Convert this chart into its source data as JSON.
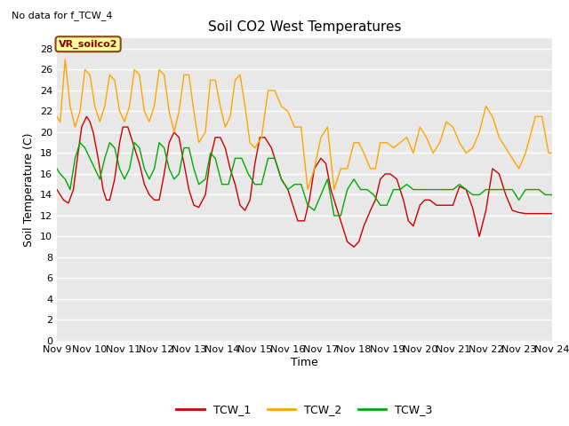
{
  "title": "Soil CO2 West Temperatures",
  "no_data_text": "No data for f_TCW_4",
  "xlabel": "Time",
  "ylabel": "Soil Temperature (C)",
  "legend_label": "VR_soilco2",
  "ylim": [
    0,
    29
  ],
  "yticks": [
    0,
    2,
    4,
    6,
    8,
    10,
    12,
    14,
    16,
    18,
    20,
    22,
    24,
    26,
    28
  ],
  "bg_color": "#e8e8e8",
  "grid_color": "white",
  "series": {
    "TCW_1": {
      "color": "#cc0000",
      "x": [
        9.0,
        9.1,
        9.2,
        9.35,
        9.5,
        9.6,
        9.75,
        9.9,
        10.0,
        10.1,
        10.25,
        10.4,
        10.5,
        10.6,
        10.75,
        10.9,
        11.0,
        11.15,
        11.3,
        11.5,
        11.65,
        11.8,
        11.95,
        12.1,
        12.25,
        12.4,
        12.55,
        12.7,
        12.85,
        13.0,
        13.15,
        13.3,
        13.5,
        13.65,
        13.8,
        13.95,
        14.1,
        14.25,
        14.4,
        14.55,
        14.7,
        14.85,
        15.0,
        15.15,
        15.3,
        15.5,
        15.65,
        15.8,
        16.0,
        16.15,
        16.3,
        16.5,
        16.65,
        16.8,
        17.0,
        17.15,
        17.3,
        17.5,
        17.65,
        17.8,
        18.0,
        18.15,
        18.3,
        18.5,
        18.65,
        18.8,
        18.95,
        19.1,
        19.3,
        19.5,
        19.65,
        19.8,
        20.0,
        20.15,
        20.3,
        20.5,
        20.65,
        20.8,
        21.0,
        21.2,
        21.4,
        21.6,
        21.8,
        22.0,
        22.2,
        22.4,
        22.6,
        22.8,
        23.0,
        23.2,
        23.5,
        23.7,
        24.0
      ],
      "y": [
        14.5,
        14.0,
        13.5,
        13.2,
        14.5,
        17.0,
        20.5,
        21.5,
        21.0,
        20.0,
        17.5,
        14.5,
        13.5,
        13.5,
        15.5,
        19.0,
        20.5,
        20.5,
        19.0,
        17.0,
        15.0,
        14.0,
        13.5,
        13.5,
        16.0,
        19.0,
        20.0,
        19.5,
        17.0,
        14.5,
        13.0,
        12.8,
        14.0,
        17.5,
        19.5,
        19.5,
        18.5,
        16.5,
        15.0,
        13.0,
        12.5,
        13.5,
        17.0,
        19.5,
        19.5,
        18.5,
        17.0,
        15.5,
        14.5,
        13.0,
        11.5,
        11.5,
        13.5,
        16.5,
        17.5,
        17.0,
        14.5,
        12.5,
        11.0,
        9.5,
        9.0,
        9.5,
        11.0,
        12.5,
        13.5,
        15.5,
        16.0,
        16.0,
        15.5,
        13.5,
        11.5,
        11.0,
        13.0,
        13.5,
        13.5,
        13.0,
        13.0,
        13.0,
        13.0,
        14.8,
        14.5,
        12.7,
        10.0,
        12.5,
        16.5,
        16.0,
        14.0,
        12.5,
        12.3,
        12.2,
        12.2,
        12.2,
        12.2
      ]
    },
    "TCW_2": {
      "color": "#ffa500",
      "x": [
        9.0,
        9.1,
        9.25,
        9.4,
        9.55,
        9.7,
        9.85,
        10.0,
        10.15,
        10.3,
        10.45,
        10.6,
        10.75,
        10.9,
        11.05,
        11.2,
        11.35,
        11.5,
        11.65,
        11.8,
        11.95,
        12.1,
        12.25,
        12.4,
        12.55,
        12.7,
        12.85,
        13.0,
        13.15,
        13.3,
        13.5,
        13.65,
        13.8,
        13.95,
        14.1,
        14.25,
        14.4,
        14.55,
        14.7,
        14.85,
        15.0,
        15.2,
        15.4,
        15.6,
        15.8,
        16.0,
        16.2,
        16.4,
        16.6,
        16.8,
        17.0,
        17.2,
        17.4,
        17.6,
        17.8,
        18.0,
        18.15,
        18.3,
        18.5,
        18.65,
        18.8,
        19.0,
        19.2,
        19.4,
        19.6,
        19.8,
        20.0,
        20.2,
        20.4,
        20.6,
        20.8,
        21.0,
        21.2,
        21.4,
        21.6,
        21.8,
        22.0,
        22.2,
        22.4,
        22.6,
        22.8,
        23.0,
        23.2,
        23.5,
        23.7,
        23.9,
        24.0
      ],
      "y": [
        21.5,
        21.0,
        27.0,
        22.5,
        20.5,
        22.0,
        26.0,
        25.5,
        22.5,
        21.0,
        22.5,
        25.5,
        25.0,
        22.0,
        21.0,
        22.5,
        26.0,
        25.5,
        22.0,
        21.0,
        22.5,
        26.0,
        25.5,
        22.0,
        20.0,
        22.0,
        25.5,
        25.5,
        22.0,
        19.0,
        20.0,
        25.0,
        25.0,
        22.5,
        20.5,
        21.5,
        25.0,
        25.5,
        22.5,
        19.0,
        18.5,
        19.5,
        24.0,
        24.0,
        22.5,
        22.0,
        20.5,
        20.5,
        14.5,
        16.5,
        19.5,
        20.5,
        14.5,
        16.5,
        16.5,
        19.0,
        19.0,
        18.0,
        16.5,
        16.5,
        19.0,
        19.0,
        18.5,
        19.0,
        19.5,
        18.0,
        20.5,
        19.5,
        18.0,
        19.0,
        21.0,
        20.5,
        19.0,
        18.0,
        18.5,
        20.0,
        22.5,
        21.5,
        19.5,
        18.5,
        17.5,
        16.5,
        18.0,
        21.5,
        21.5,
        18.0,
        18.0
      ]
    },
    "TCW_3": {
      "color": "#00aa00",
      "x": [
        9.0,
        9.1,
        9.25,
        9.4,
        9.55,
        9.7,
        9.85,
        10.0,
        10.15,
        10.3,
        10.45,
        10.6,
        10.75,
        10.9,
        11.05,
        11.2,
        11.35,
        11.5,
        11.65,
        11.8,
        11.95,
        12.1,
        12.25,
        12.4,
        12.55,
        12.7,
        12.85,
        13.0,
        13.15,
        13.3,
        13.5,
        13.65,
        13.8,
        14.0,
        14.2,
        14.4,
        14.6,
        14.8,
        15.0,
        15.2,
        15.4,
        15.6,
        15.8,
        16.0,
        16.2,
        16.4,
        16.6,
        16.8,
        17.0,
        17.2,
        17.4,
        17.6,
        17.8,
        18.0,
        18.2,
        18.4,
        18.6,
        18.8,
        19.0,
        19.2,
        19.4,
        19.6,
        19.8,
        20.0,
        20.2,
        20.4,
        20.6,
        20.8,
        21.0,
        21.2,
        21.4,
        21.6,
        21.8,
        22.0,
        22.2,
        22.4,
        22.6,
        22.8,
        23.0,
        23.2,
        23.4,
        23.6,
        23.8,
        24.0
      ],
      "y": [
        16.5,
        16.0,
        15.5,
        14.5,
        17.5,
        19.0,
        18.5,
        17.5,
        16.5,
        15.5,
        17.5,
        19.0,
        18.5,
        16.5,
        15.5,
        16.5,
        19.0,
        18.5,
        16.5,
        15.5,
        16.5,
        19.0,
        18.5,
        16.5,
        15.5,
        16.0,
        18.5,
        18.5,
        16.5,
        15.0,
        15.5,
        18.0,
        17.5,
        15.0,
        15.0,
        17.5,
        17.5,
        16.0,
        15.0,
        15.0,
        17.5,
        17.5,
        15.5,
        14.5,
        15.0,
        15.0,
        13.0,
        12.5,
        14.0,
        15.5,
        12.0,
        12.0,
        14.5,
        15.5,
        14.5,
        14.5,
        14.0,
        13.0,
        13.0,
        14.5,
        14.5,
        15.0,
        14.5,
        14.5,
        14.5,
        14.5,
        14.5,
        14.5,
        14.5,
        15.0,
        14.5,
        14.0,
        14.0,
        14.5,
        14.5,
        14.5,
        14.5,
        14.5,
        13.5,
        14.5,
        14.5,
        14.5,
        14.0,
        14.0
      ]
    }
  },
  "xtick_positions": [
    9,
    10,
    11,
    12,
    13,
    14,
    15,
    16,
    17,
    18,
    19,
    20,
    21,
    22,
    23,
    24
  ],
  "xtick_labels": [
    "Nov 9",
    "Nov 10",
    "Nov 11",
    "Nov 12",
    "Nov 13",
    "Nov 14",
    "Nov 15",
    "Nov 16",
    "Nov 17",
    "Nov 18",
    "Nov 19",
    "Nov 20",
    "Nov 21",
    "Nov 22",
    "Nov 23",
    "Nov 24"
  ]
}
